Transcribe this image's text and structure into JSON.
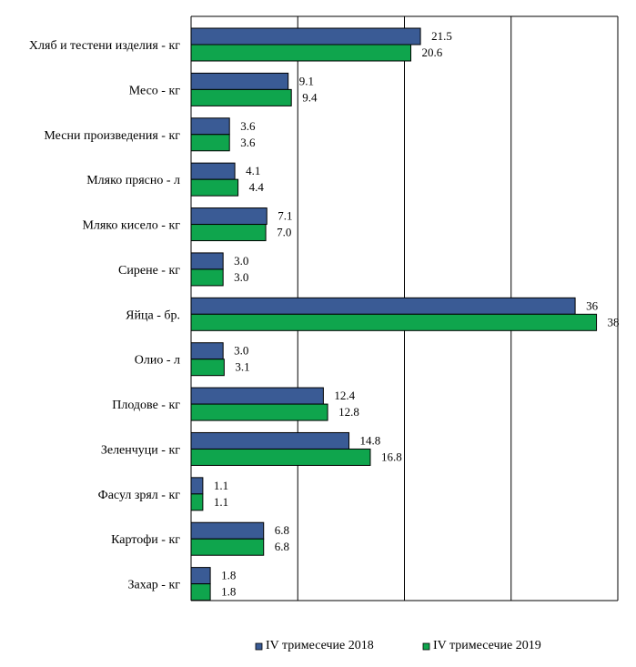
{
  "chart_data": {
    "type": "bar",
    "orientation": "horizontal",
    "categories": [
      "Хляб и тестени изделия - кг",
      "Месо - кг",
      "Месни произведения  - кг",
      "Мляко прясно - л",
      "Мляко кисело - кг",
      "Сирене - кг",
      "Яйца - бр.",
      "Олио - л",
      "Плодове - кг",
      "Зеленчуци - кг",
      "Фасул зрял - кг",
      "Картофи - кг",
      "Захар - кг"
    ],
    "series": [
      {
        "name": "IV тримесечие 2018",
        "color": "#3a5b95",
        "values": [
          21.5,
          9.1,
          3.6,
          4.1,
          7.1,
          3.0,
          36,
          3.0,
          12.4,
          14.8,
          1.1,
          6.8,
          1.8
        ],
        "labels": [
          "21.5",
          "9.1",
          "3.6",
          "4.1",
          "7.1",
          "3.0",
          "36",
          "3.0",
          "12.4",
          "14.8",
          "1.1",
          "6.8",
          "1.8"
        ]
      },
      {
        "name": "IV тримесечие 2019",
        "color": "#0fa54d",
        "values": [
          20.6,
          9.4,
          3.6,
          4.4,
          7.0,
          3.0,
          38,
          3.1,
          12.8,
          16.8,
          1.1,
          6.8,
          1.8
        ],
        "labels": [
          "20.6",
          "9.4",
          "3.6",
          "4.4",
          "7.0",
          "3.0",
          "38",
          "3.1",
          "12.8",
          "16.8",
          "1.1",
          "6.8",
          "1.8"
        ]
      }
    ],
    "xlim": [
      0,
      40
    ],
    "grid_step": 10,
    "grid": true,
    "legend_position": "bottom"
  }
}
